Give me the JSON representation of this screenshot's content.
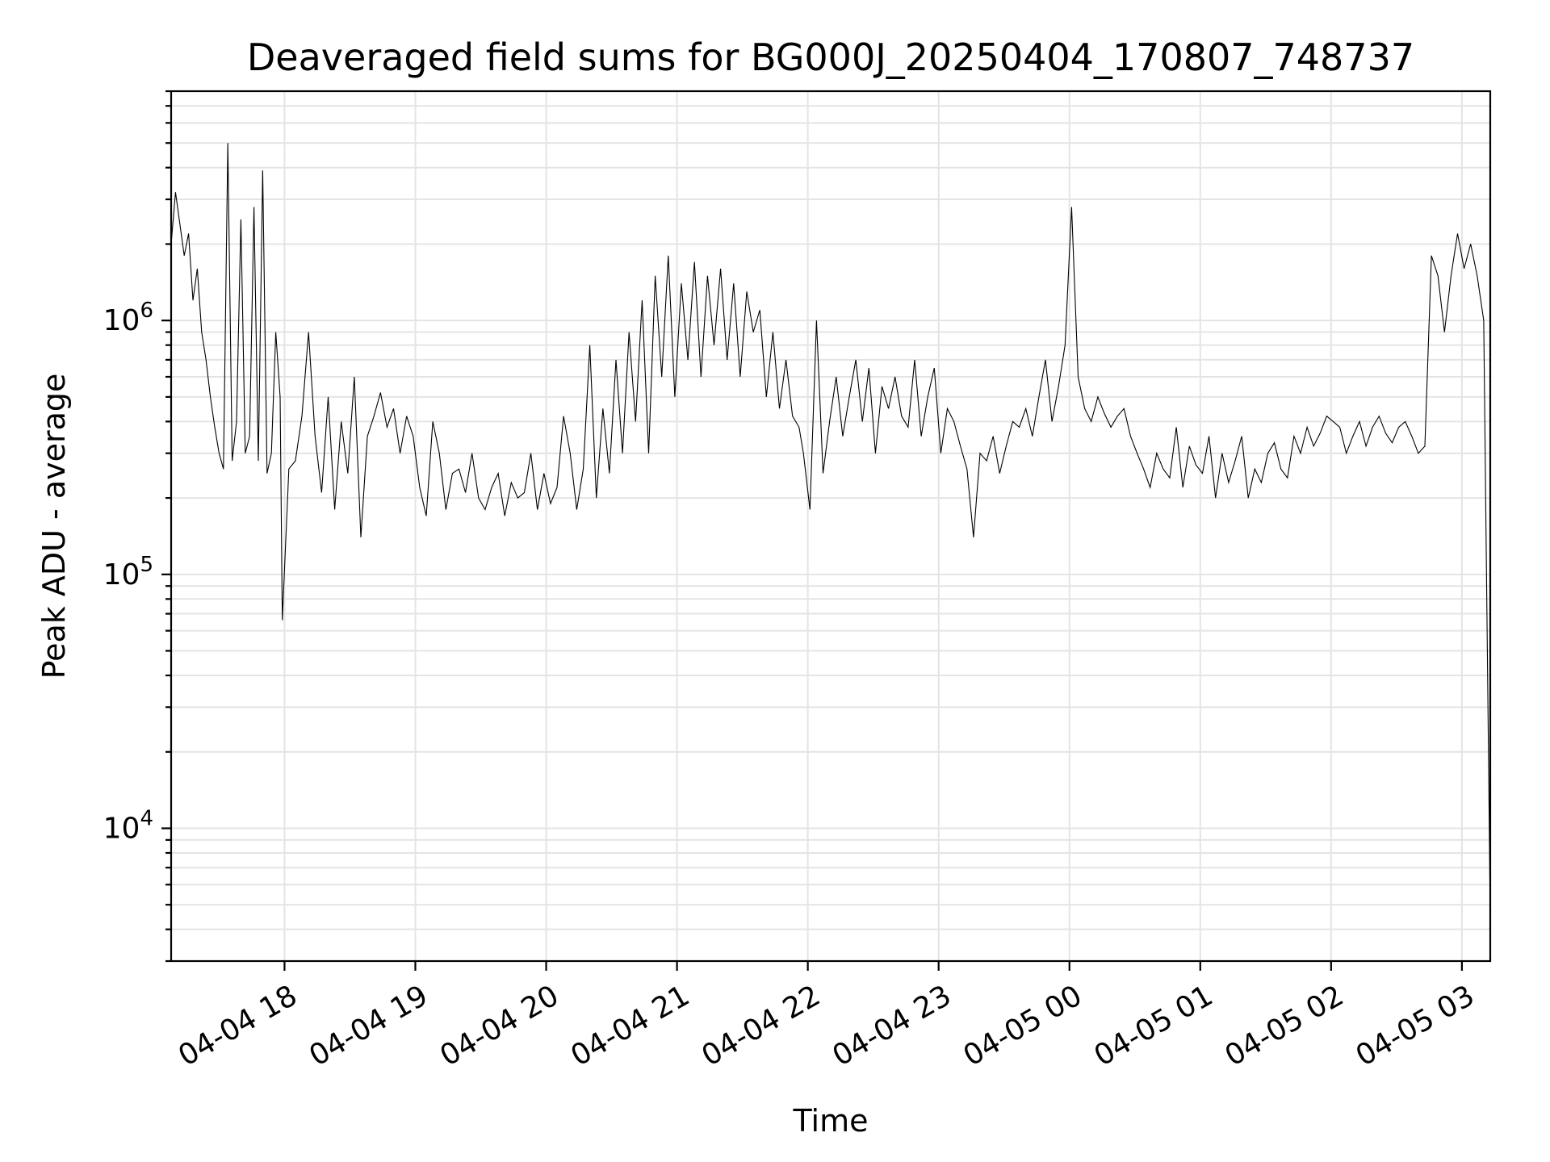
{
  "chart_data": {
    "type": "line",
    "title": "Deaveraged field sums for BG000J_20250404_170807_748737",
    "xlabel": "Time",
    "ylabel": "Peak ADU - average",
    "yscale": "log",
    "grid": true,
    "line_color": "#000000",
    "xlim": [
      "2025-04-04 17:08",
      "2025-04-05 03:13"
    ],
    "ylim": [
      3000,
      8000000
    ],
    "x_ticks": [
      {
        "value": "2025-04-04 18:00",
        "label": "04-04 18"
      },
      {
        "value": "2025-04-04 19:00",
        "label": "04-04 19"
      },
      {
        "value": "2025-04-04 20:00",
        "label": "04-04 20"
      },
      {
        "value": "2025-04-04 21:00",
        "label": "04-04 21"
      },
      {
        "value": "2025-04-04 22:00",
        "label": "04-04 22"
      },
      {
        "value": "2025-04-04 23:00",
        "label": "04-04 23"
      },
      {
        "value": "2025-04-05 00:00",
        "label": "04-05 00"
      },
      {
        "value": "2025-04-05 01:00",
        "label": "04-05 01"
      },
      {
        "value": "2025-04-05 02:00",
        "label": "04-05 02"
      },
      {
        "value": "2025-04-05 03:00",
        "label": "04-05 03"
      }
    ],
    "y_ticks": [
      {
        "value": 10000,
        "base": "10",
        "exp": "4"
      },
      {
        "value": 100000,
        "base": "10",
        "exp": "5"
      },
      {
        "value": 1000000,
        "base": "10",
        "exp": "6"
      }
    ],
    "series": [
      {
        "x": [
          "2025-04-04 17:08",
          "2025-04-04 17:10",
          "2025-04-04 17:12",
          "2025-04-04 17:14",
          "2025-04-04 17:16",
          "2025-04-04 17:18",
          "2025-04-04 17:20",
          "2025-04-04 17:22",
          "2025-04-04 17:24",
          "2025-04-04 17:26",
          "2025-04-04 17:28",
          "2025-04-04 17:30",
          "2025-04-04 17:32",
          "2025-04-04 17:34",
          "2025-04-04 17:36",
          "2025-04-04 17:38",
          "2025-04-04 17:40",
          "2025-04-04 17:42",
          "2025-04-04 17:44",
          "2025-04-04 17:46",
          "2025-04-04 17:48",
          "2025-04-04 17:50",
          "2025-04-04 17:52",
          "2025-04-04 17:54",
          "2025-04-04 17:56",
          "2025-04-04 17:58",
          "2025-04-04 17:59",
          "2025-04-04 18:02",
          "2025-04-04 18:05",
          "2025-04-04 18:08",
          "2025-04-04 18:11",
          "2025-04-04 18:14",
          "2025-04-04 18:17",
          "2025-04-04 18:20",
          "2025-04-04 18:23",
          "2025-04-04 18:26",
          "2025-04-04 18:29",
          "2025-04-04 18:32",
          "2025-04-04 18:35",
          "2025-04-04 18:38",
          "2025-04-04 18:41",
          "2025-04-04 18:44",
          "2025-04-04 18:47",
          "2025-04-04 18:50",
          "2025-04-04 18:53",
          "2025-04-04 18:56",
          "2025-04-04 18:59",
          "2025-04-04 19:02",
          "2025-04-04 19:05",
          "2025-04-04 19:08",
          "2025-04-04 19:11",
          "2025-04-04 19:14",
          "2025-04-04 19:17",
          "2025-04-04 19:20",
          "2025-04-04 19:23",
          "2025-04-04 19:26",
          "2025-04-04 19:29",
          "2025-04-04 19:32",
          "2025-04-04 19:35",
          "2025-04-04 19:38",
          "2025-04-04 19:41",
          "2025-04-04 19:44",
          "2025-04-04 19:47",
          "2025-04-04 19:50",
          "2025-04-04 19:53",
          "2025-04-04 19:56",
          "2025-04-04 19:59",
          "2025-04-04 20:02",
          "2025-04-04 20:05",
          "2025-04-04 20:08",
          "2025-04-04 20:11",
          "2025-04-04 20:14",
          "2025-04-04 20:17",
          "2025-04-04 20:20",
          "2025-04-04 20:23",
          "2025-04-04 20:26",
          "2025-04-04 20:29",
          "2025-04-04 20:32",
          "2025-04-04 20:35",
          "2025-04-04 20:38",
          "2025-04-04 20:41",
          "2025-04-04 20:44",
          "2025-04-04 20:47",
          "2025-04-04 20:50",
          "2025-04-04 20:53",
          "2025-04-04 20:56",
          "2025-04-04 20:59",
          "2025-04-04 21:02",
          "2025-04-04 21:05",
          "2025-04-04 21:08",
          "2025-04-04 21:11",
          "2025-04-04 21:14",
          "2025-04-04 21:17",
          "2025-04-04 21:20",
          "2025-04-04 21:23",
          "2025-04-04 21:26",
          "2025-04-04 21:29",
          "2025-04-04 21:32",
          "2025-04-04 21:35",
          "2025-04-04 21:38",
          "2025-04-04 21:41",
          "2025-04-04 21:44",
          "2025-04-04 21:47",
          "2025-04-04 21:50",
          "2025-04-04 21:53",
          "2025-04-04 21:56",
          "2025-04-04 21:58",
          "2025-04-04 22:01",
          "2025-04-04 22:04",
          "2025-04-04 22:07",
          "2025-04-04 22:10",
          "2025-04-04 22:13",
          "2025-04-04 22:16",
          "2025-04-04 22:19",
          "2025-04-04 22:22",
          "2025-04-04 22:25",
          "2025-04-04 22:28",
          "2025-04-04 22:31",
          "2025-04-04 22:34",
          "2025-04-04 22:37",
          "2025-04-04 22:40",
          "2025-04-04 22:43",
          "2025-04-04 22:46",
          "2025-04-04 22:49",
          "2025-04-04 22:52",
          "2025-04-04 22:55",
          "2025-04-04 22:58",
          "2025-04-04 23:01",
          "2025-04-04 23:04",
          "2025-04-04 23:07",
          "2025-04-04 23:10",
          "2025-04-04 23:13",
          "2025-04-04 23:16",
          "2025-04-04 23:19",
          "2025-04-04 23:22",
          "2025-04-04 23:25",
          "2025-04-04 23:28",
          "2025-04-04 23:31",
          "2025-04-04 23:34",
          "2025-04-04 23:37",
          "2025-04-04 23:40",
          "2025-04-04 23:43",
          "2025-04-04 23:46",
          "2025-04-04 23:49",
          "2025-04-04 23:52",
          "2025-04-04 23:55",
          "2025-04-04 23:58",
          "2025-04-05 00:01",
          "2025-04-05 00:04",
          "2025-04-05 00:07",
          "2025-04-05 00:10",
          "2025-04-05 00:13",
          "2025-04-05 00:16",
          "2025-04-05 00:19",
          "2025-04-05 00:22",
          "2025-04-05 00:25",
          "2025-04-05 00:28",
          "2025-04-05 00:31",
          "2025-04-05 00:34",
          "2025-04-05 00:37",
          "2025-04-05 00:40",
          "2025-04-05 00:43",
          "2025-04-05 00:46",
          "2025-04-05 00:49",
          "2025-04-05 00:52",
          "2025-04-05 00:55",
          "2025-04-05 00:58",
          "2025-04-05 01:01",
          "2025-04-05 01:04",
          "2025-04-05 01:07",
          "2025-04-05 01:10",
          "2025-04-05 01:13",
          "2025-04-05 01:16",
          "2025-04-05 01:19",
          "2025-04-05 01:22",
          "2025-04-05 01:25",
          "2025-04-05 01:28",
          "2025-04-05 01:31",
          "2025-04-05 01:34",
          "2025-04-05 01:37",
          "2025-04-05 01:40",
          "2025-04-05 01:43",
          "2025-04-05 01:46",
          "2025-04-05 01:49",
          "2025-04-05 01:52",
          "2025-04-05 01:55",
          "2025-04-05 01:58",
          "2025-04-05 02:01",
          "2025-04-05 02:04",
          "2025-04-05 02:07",
          "2025-04-05 02:10",
          "2025-04-05 02:13",
          "2025-04-05 02:16",
          "2025-04-05 02:19",
          "2025-04-05 02:22",
          "2025-04-05 02:25",
          "2025-04-05 02:28",
          "2025-04-05 02:31",
          "2025-04-05 02:34",
          "2025-04-05 02:37",
          "2025-04-05 02:40",
          "2025-04-05 02:43",
          "2025-04-05 02:46",
          "2025-04-05 02:49",
          "2025-04-05 02:52",
          "2025-04-05 02:55",
          "2025-04-05 02:58",
          "2025-04-05 03:01",
          "2025-04-05 03:04",
          "2025-04-05 03:07",
          "2025-04-05 03:10",
          "2025-04-05 03:13"
        ],
        "y": [
          2000000,
          3200000,
          2400000,
          1800000,
          2200000,
          1200000,
          1600000,
          900000,
          700000,
          500000,
          380000,
          300000,
          260000,
          5000000,
          280000,
          400000,
          2500000,
          300000,
          350000,
          2800000,
          280000,
          3900000,
          250000,
          300000,
          900000,
          500000,
          66000,
          260000,
          280000,
          420000,
          900000,
          350000,
          210000,
          500000,
          180000,
          400000,
          250000,
          600000,
          140000,
          350000,
          420000,
          520000,
          380000,
          450000,
          300000,
          420000,
          350000,
          220000,
          170000,
          400000,
          300000,
          180000,
          250000,
          260000,
          210000,
          300000,
          200000,
          180000,
          220000,
          250000,
          170000,
          230000,
          200000,
          210000,
          300000,
          180000,
          250000,
          190000,
          220000,
          420000,
          300000,
          180000,
          260000,
          800000,
          200000,
          450000,
          250000,
          700000,
          300000,
          900000,
          400000,
          1200000,
          300000,
          1500000,
          600000,
          1800000,
          500000,
          1400000,
          700000,
          1700000,
          600000,
          1500000,
          800000,
          1600000,
          700000,
          1400000,
          600000,
          1300000,
          900000,
          1100000,
          500000,
          900000,
          450000,
          700000,
          420000,
          380000,
          300000,
          180000,
          1000000,
          250000,
          400000,
          600000,
          350000,
          500000,
          700000,
          400000,
          650000,
          300000,
          550000,
          450000,
          600000,
          420000,
          380000,
          700000,
          350000,
          500000,
          650000,
          300000,
          450000,
          400000,
          320000,
          260000,
          140000,
          300000,
          280000,
          350000,
          250000,
          320000,
          400000,
          380000,
          450000,
          350000,
          500000,
          700000,
          400000,
          550000,
          800000,
          2800000,
          600000,
          450000,
          400000,
          500000,
          430000,
          380000,
          420000,
          450000,
          350000,
          300000,
          260000,
          220000,
          300000,
          260000,
          240000,
          380000,
          220000,
          320000,
          270000,
          250000,
          350000,
          200000,
          300000,
          230000,
          280000,
          350000,
          200000,
          260000,
          230000,
          300000,
          330000,
          260000,
          240000,
          350000,
          300000,
          380000,
          320000,
          360000,
          420000,
          400000,
          380000,
          300000,
          350000,
          400000,
          320000,
          380000,
          420000,
          360000,
          330000,
          380000,
          400000,
          350000,
          300000,
          320000,
          1800000,
          1500000,
          900000,
          1500000,
          2200000,
          1600000,
          2000000,
          1500000,
          1000000,
          4500
        ]
      }
    ]
  }
}
